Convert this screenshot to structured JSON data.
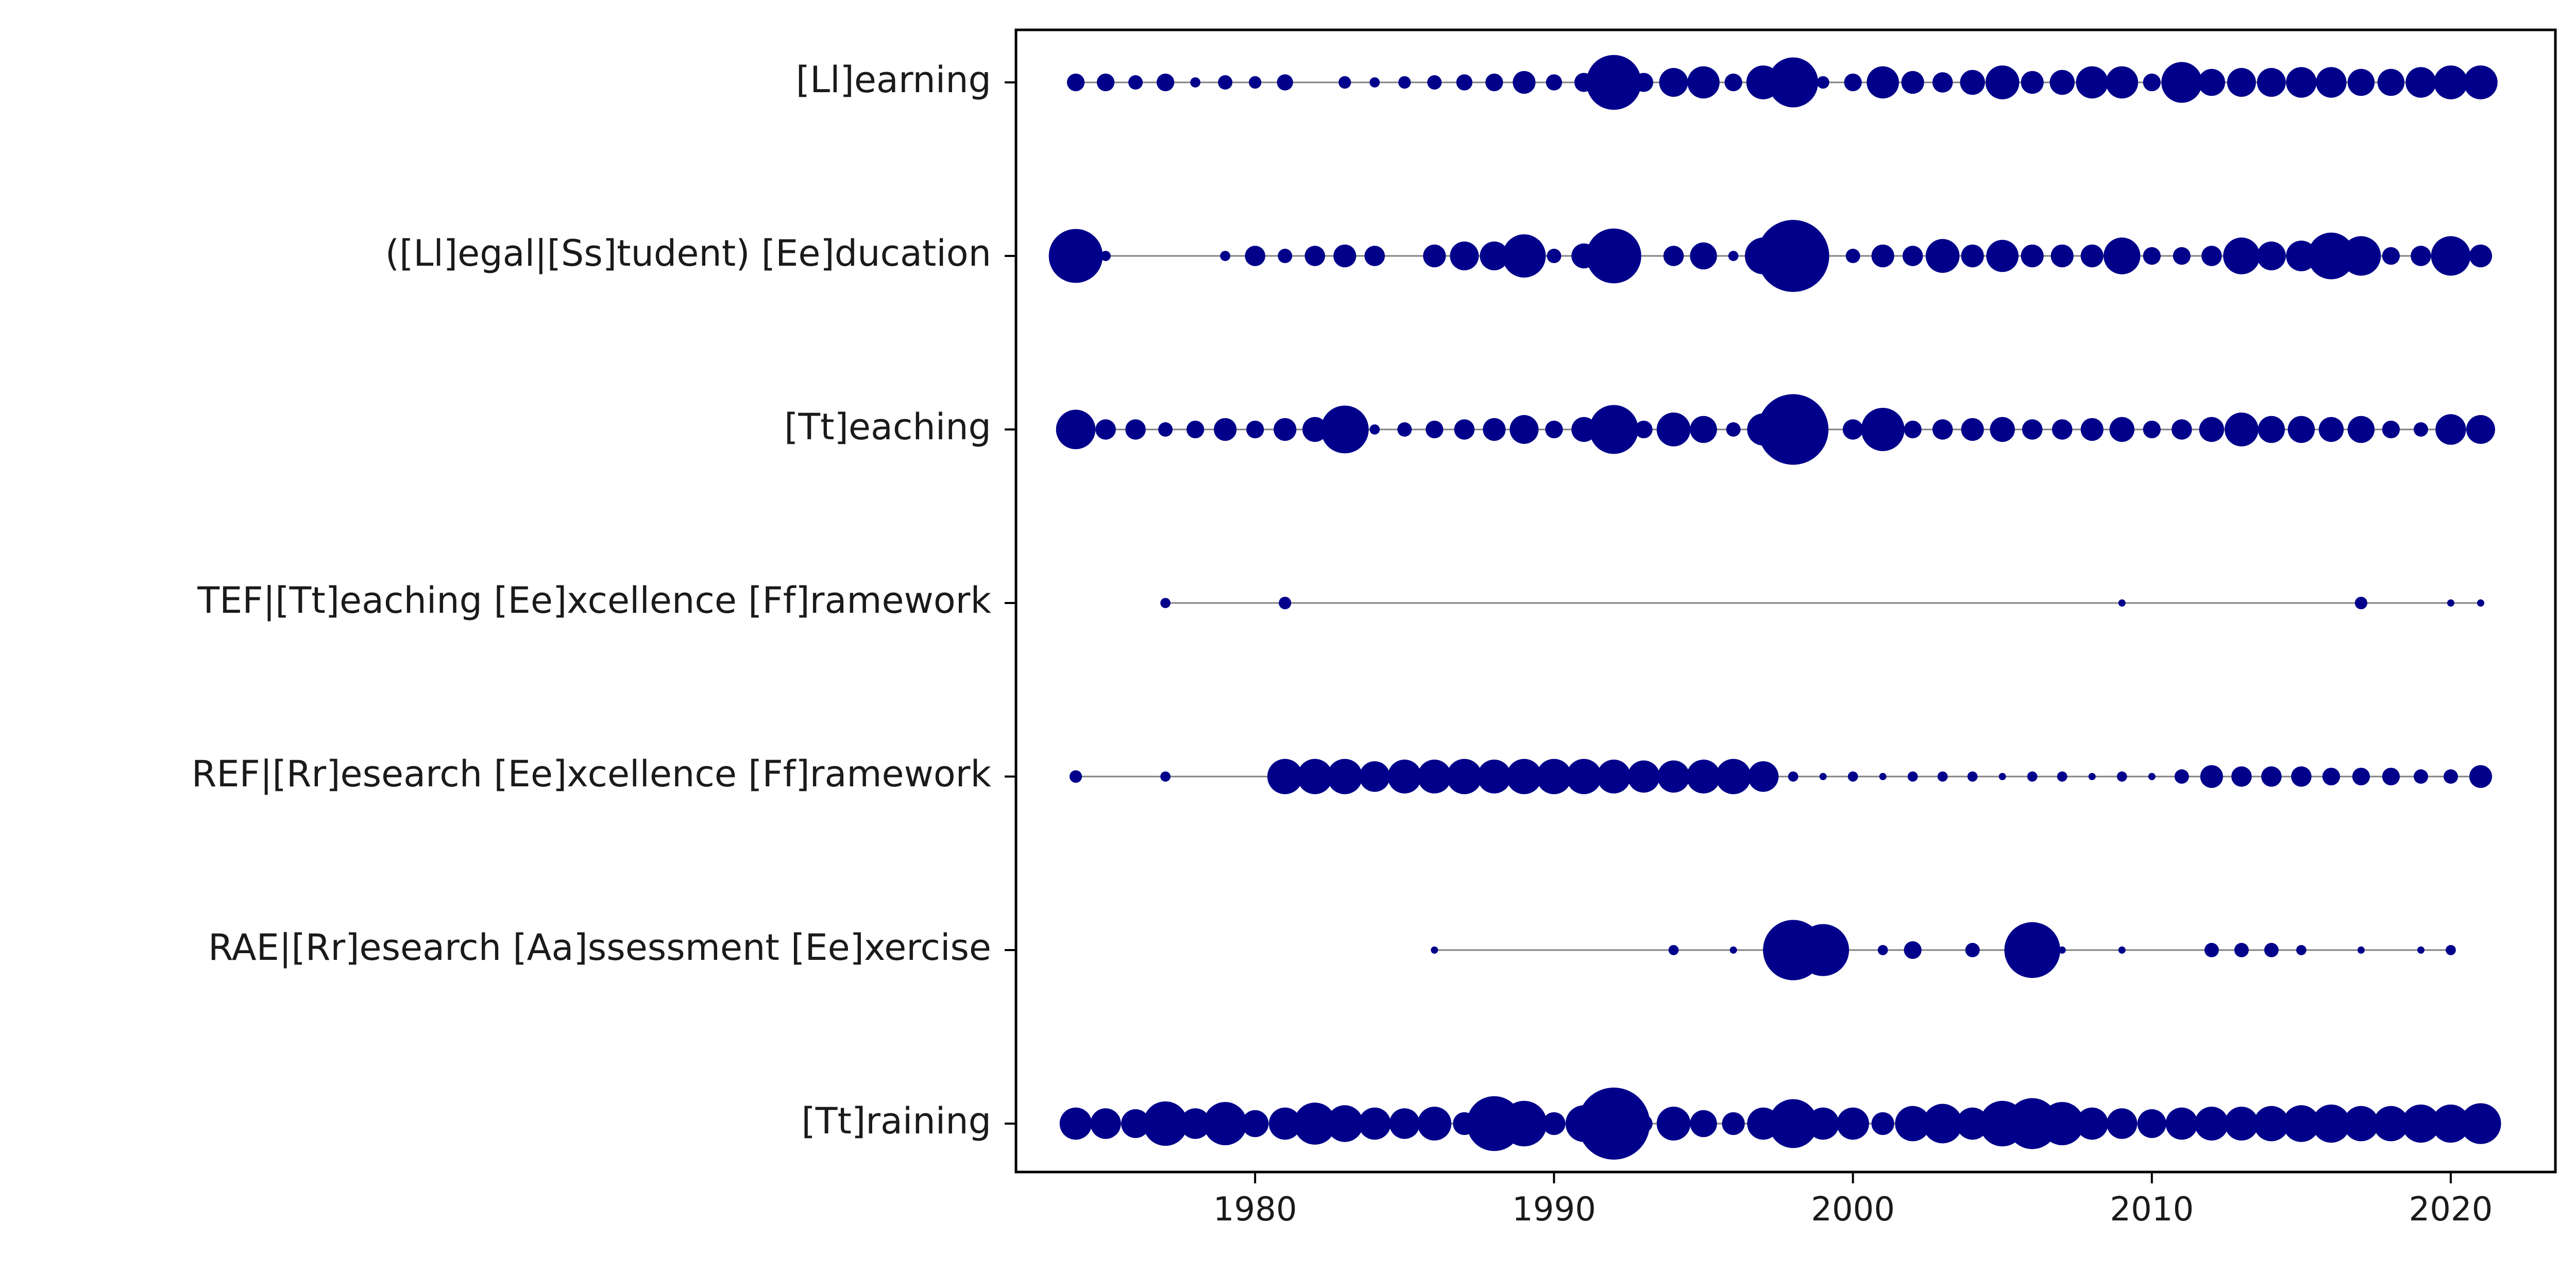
{
  "chart_data": {
    "type": "scatter",
    "title": "",
    "xlabel": "",
    "ylabel": "",
    "xlim": [
      1972,
      2023.5
    ],
    "xticks": [
      1980,
      1990,
      2000,
      2010,
      2020
    ],
    "xtick_labels": [
      "1980",
      "1990",
      "2000",
      "2010",
      "2020"
    ],
    "grid": false,
    "legend": "none",
    "colors": {
      "marker": "#00008B",
      "line": "#808080",
      "axes": "#000000"
    },
    "encoding": "Marker area shows a relative per-year value (estimated from marker size, arbitrary units).",
    "series": [
      {
        "label": "[Ll]earning",
        "points": [
          [
            1974,
            6
          ],
          [
            1975,
            6
          ],
          [
            1976,
            4
          ],
          [
            1977,
            6
          ],
          [
            1978,
            2
          ],
          [
            1979,
            4
          ],
          [
            1980,
            3
          ],
          [
            1981,
            5
          ],
          [
            1983,
            3
          ],
          [
            1984,
            2
          ],
          [
            1985,
            3
          ],
          [
            1986,
            4
          ],
          [
            1987,
            5
          ],
          [
            1988,
            6
          ],
          [
            1989,
            10
          ],
          [
            1990,
            5
          ],
          [
            1991,
            7
          ],
          [
            1992,
            58
          ],
          [
            1993,
            7
          ],
          [
            1994,
            16
          ],
          [
            1995,
            20
          ],
          [
            1996,
            6
          ],
          [
            1997,
            22
          ],
          [
            1998,
            48
          ],
          [
            1999,
            3
          ],
          [
            2000,
            6
          ],
          [
            2001,
            20
          ],
          [
            2002,
            10
          ],
          [
            2003,
            8
          ],
          [
            2004,
            12
          ],
          [
            2005,
            22
          ],
          [
            2006,
            10
          ],
          [
            2007,
            12
          ],
          [
            2008,
            20
          ],
          [
            2009,
            20
          ],
          [
            2010,
            6
          ],
          [
            2011,
            32
          ],
          [
            2012,
            14
          ],
          [
            2013,
            16
          ],
          [
            2014,
            16
          ],
          [
            2015,
            18
          ],
          [
            2016,
            18
          ],
          [
            2017,
            14
          ],
          [
            2018,
            14
          ],
          [
            2019,
            18
          ],
          [
            2020,
            22
          ],
          [
            2021,
            22
          ]
        ]
      },
      {
        "label": "([Ll]egal|[Ss]tudent) [Ee]ducation",
        "points": [
          [
            1974,
            56
          ],
          [
            1975,
            2
          ],
          [
            1979,
            2
          ],
          [
            1980,
            8
          ],
          [
            1981,
            4
          ],
          [
            1982,
            8
          ],
          [
            1983,
            10
          ],
          [
            1984,
            8
          ],
          [
            1986,
            10
          ],
          [
            1987,
            16
          ],
          [
            1988,
            16
          ],
          [
            1989,
            36
          ],
          [
            1990,
            4
          ],
          [
            1991,
            12
          ],
          [
            1992,
            58
          ],
          [
            1994,
            8
          ],
          [
            1995,
            14
          ],
          [
            1996,
            2
          ],
          [
            1997,
            26
          ],
          [
            1998,
            100
          ],
          [
            2000,
            4
          ],
          [
            2001,
            10
          ],
          [
            2002,
            8
          ],
          [
            2003,
            22
          ],
          [
            2004,
            10
          ],
          [
            2005,
            20
          ],
          [
            2006,
            10
          ],
          [
            2007,
            10
          ],
          [
            2008,
            10
          ],
          [
            2009,
            26
          ],
          [
            2010,
            6
          ],
          [
            2011,
            6
          ],
          [
            2012,
            8
          ],
          [
            2013,
            26
          ],
          [
            2014,
            16
          ],
          [
            2015,
            18
          ],
          [
            2016,
            42
          ],
          [
            2017,
            30
          ],
          [
            2018,
            6
          ],
          [
            2019,
            8
          ],
          [
            2020,
            30
          ],
          [
            2021,
            10
          ]
        ]
      },
      {
        "label": "[Tt]eaching",
        "points": [
          [
            1974,
            30
          ],
          [
            1975,
            8
          ],
          [
            1976,
            8
          ],
          [
            1977,
            4
          ],
          [
            1978,
            6
          ],
          [
            1979,
            10
          ],
          [
            1980,
            6
          ],
          [
            1981,
            10
          ],
          [
            1982,
            12
          ],
          [
            1983,
            44
          ],
          [
            1984,
            2
          ],
          [
            1985,
            4
          ],
          [
            1986,
            6
          ],
          [
            1987,
            8
          ],
          [
            1988,
            10
          ],
          [
            1989,
            16
          ],
          [
            1990,
            6
          ],
          [
            1991,
            12
          ],
          [
            1992,
            46
          ],
          [
            1993,
            6
          ],
          [
            1994,
            22
          ],
          [
            1995,
            14
          ],
          [
            1996,
            4
          ],
          [
            1997,
            20
          ],
          [
            1998,
            96
          ],
          [
            2000,
            8
          ],
          [
            2001,
            36
          ],
          [
            2002,
            6
          ],
          [
            2003,
            8
          ],
          [
            2004,
            10
          ],
          [
            2005,
            12
          ],
          [
            2006,
            8
          ],
          [
            2007,
            8
          ],
          [
            2008,
            10
          ],
          [
            2009,
            12
          ],
          [
            2010,
            6
          ],
          [
            2011,
            8
          ],
          [
            2012,
            12
          ],
          [
            2013,
            22
          ],
          [
            2014,
            14
          ],
          [
            2015,
            14
          ],
          [
            2016,
            12
          ],
          [
            2017,
            14
          ],
          [
            2018,
            6
          ],
          [
            2019,
            4
          ],
          [
            2020,
            18
          ],
          [
            2021,
            16
          ]
        ]
      },
      {
        "label": "TEF|[Tt]eaching [Ee]xcellence [Ff]ramework",
        "points": [
          [
            1977,
            2
          ],
          [
            1981,
            3
          ],
          [
            2009,
            1
          ],
          [
            2017,
            3
          ],
          [
            2020,
            1
          ],
          [
            2021,
            1
          ]
        ]
      },
      {
        "label": "REF|[Rr]esearch [Ee]xcellence [Ff]ramework",
        "points": [
          [
            1974,
            3
          ],
          [
            1977,
            2
          ],
          [
            1981,
            24
          ],
          [
            1982,
            24
          ],
          [
            1983,
            24
          ],
          [
            1984,
            18
          ],
          [
            1985,
            22
          ],
          [
            1986,
            22
          ],
          [
            1987,
            24
          ],
          [
            1988,
            22
          ],
          [
            1989,
            24
          ],
          [
            1990,
            24
          ],
          [
            1991,
            24
          ],
          [
            1992,
            22
          ],
          [
            1993,
            20
          ],
          [
            1994,
            20
          ],
          [
            1995,
            22
          ],
          [
            1996,
            24
          ],
          [
            1997,
            18
          ],
          [
            1998,
            2
          ],
          [
            1999,
            1
          ],
          [
            2000,
            2
          ],
          [
            2001,
            1
          ],
          [
            2002,
            2
          ],
          [
            2003,
            2
          ],
          [
            2004,
            2
          ],
          [
            2005,
            1
          ],
          [
            2006,
            2
          ],
          [
            2007,
            2
          ],
          [
            2008,
            1
          ],
          [
            2009,
            2
          ],
          [
            2010,
            1
          ],
          [
            2011,
            4
          ],
          [
            2012,
            10
          ],
          [
            2013,
            8
          ],
          [
            2014,
            8
          ],
          [
            2015,
            8
          ],
          [
            2016,
            6
          ],
          [
            2017,
            6
          ],
          [
            2018,
            6
          ],
          [
            2019,
            4
          ],
          [
            2020,
            4
          ],
          [
            2021,
            10
          ]
        ]
      },
      {
        "label": "RAE|[Rr]esearch [Aa]ssessment [Ee]xercise",
        "points": [
          [
            1986,
            1
          ],
          [
            1994,
            2
          ],
          [
            1996,
            1
          ],
          [
            1998,
            70
          ],
          [
            1999,
            52
          ],
          [
            2001,
            2
          ],
          [
            2002,
            6
          ],
          [
            2004,
            4
          ],
          [
            2006,
            60
          ],
          [
            2007,
            1
          ],
          [
            2009,
            1
          ],
          [
            2012,
            4
          ],
          [
            2013,
            4
          ],
          [
            2014,
            4
          ],
          [
            2015,
            2
          ],
          [
            2017,
            1
          ],
          [
            2019,
            1
          ],
          [
            2020,
            2
          ]
        ]
      },
      {
        "label": "[Tt]raining",
        "points": [
          [
            1974,
            20
          ],
          [
            1975,
            18
          ],
          [
            1976,
            16
          ],
          [
            1977,
            38
          ],
          [
            1978,
            18
          ],
          [
            1979,
            36
          ],
          [
            1980,
            14
          ],
          [
            1981,
            20
          ],
          [
            1982,
            34
          ],
          [
            1983,
            26
          ],
          [
            1984,
            20
          ],
          [
            1985,
            18
          ],
          [
            1986,
            22
          ],
          [
            1987,
            10
          ],
          [
            1988,
            58
          ],
          [
            1989,
            40
          ],
          [
            1990,
            10
          ],
          [
            1991,
            26
          ],
          [
            1992,
            100
          ],
          [
            1993,
            6
          ],
          [
            1994,
            22
          ],
          [
            1995,
            14
          ],
          [
            1996,
            10
          ],
          [
            1997,
            20
          ],
          [
            1998,
            46
          ],
          [
            1999,
            20
          ],
          [
            2000,
            20
          ],
          [
            2001,
            10
          ],
          [
            2002,
            24
          ],
          [
            2003,
            30
          ],
          [
            2004,
            20
          ],
          [
            2005,
            40
          ],
          [
            2006,
            50
          ],
          [
            2007,
            36
          ],
          [
            2008,
            20
          ],
          [
            2009,
            18
          ],
          [
            2010,
            16
          ],
          [
            2011,
            20
          ],
          [
            2012,
            22
          ],
          [
            2013,
            22
          ],
          [
            2014,
            24
          ],
          [
            2015,
            26
          ],
          [
            2016,
            28
          ],
          [
            2017,
            24
          ],
          [
            2018,
            24
          ],
          [
            2019,
            28
          ],
          [
            2020,
            28
          ],
          [
            2021,
            32
          ]
        ]
      }
    ]
  }
}
